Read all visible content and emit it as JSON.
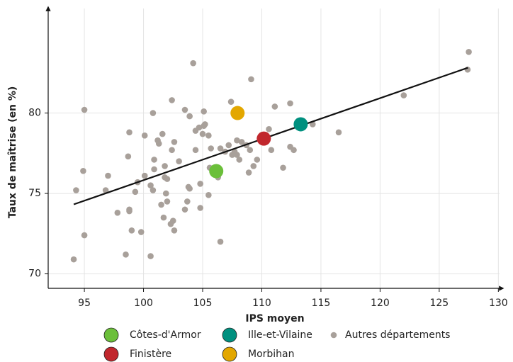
{
  "chart_data": {
    "type": "scatter",
    "xlabel": "IPS moyen",
    "ylabel": "Taux de maîtrise (en %)",
    "xlim": [
      91.94,
      130.1
    ],
    "ylim": [
      69.1,
      86.5
    ],
    "xticks": [
      95,
      100,
      105,
      110,
      115,
      120,
      125,
      130
    ],
    "yticks": [
      70,
      75,
      80
    ],
    "grid": true,
    "fit": {
      "x": [
        94.1,
        127.43
      ],
      "y": [
        74.32,
        82.82
      ],
      "color": "#111111"
    },
    "series": [
      {
        "name": "Autres départements",
        "color": "#a8a09a",
        "marker": "small",
        "x": [
          94.1,
          94.3,
          94.9,
          95.0,
          95.0,
          96.8,
          97.0,
          97.8,
          98.5,
          98.8,
          98.8,
          98.7,
          98.8,
          99.0,
          99.3,
          99.5,
          99.8,
          100.1,
          100.1,
          100.6,
          100.8,
          100.6,
          100.8,
          100.9,
          100.9,
          101.2,
          101.3,
          101.5,
          101.6,
          101.7,
          101.8,
          101.8,
          101.9,
          102.0,
          102.0,
          102.3,
          102.4,
          102.5,
          102.6,
          102.4,
          102.6,
          103.0,
          103.5,
          103.5,
          103.7,
          103.8,
          103.9,
          103.9,
          104.2,
          104.4,
          104.4,
          104.7,
          104.8,
          104.8,
          105.0,
          105.1,
          105.1,
          105.2,
          105.5,
          105.5,
          105.6,
          105.7,
          106.3,
          106.5,
          106.5,
          106.9,
          107.2,
          107.4,
          107.5,
          107.7,
          107.9,
          108.1,
          107.9,
          108.3,
          108.7,
          108.9,
          109.0,
          109.1,
          109.3,
          109.6,
          110.6,
          110.8,
          111.1,
          111.8,
          112.4,
          112.4,
          112.7,
          114.3,
          116.5,
          122.0,
          127.5,
          127.4
        ],
        "y": [
          70.9,
          75.2,
          76.4,
          80.2,
          72.4,
          75.2,
          76.1,
          73.8,
          71.2,
          73.9,
          74.0,
          77.3,
          78.8,
          72.7,
          75.1,
          75.7,
          72.6,
          76.1,
          78.6,
          75.5,
          80.0,
          71.1,
          75.2,
          77.1,
          76.5,
          78.3,
          78.1,
          74.3,
          78.7,
          73.5,
          76.0,
          76.7,
          75.0,
          74.5,
          75.9,
          73.1,
          80.8,
          73.3,
          78.2,
          77.7,
          72.7,
          77.0,
          80.2,
          74.0,
          74.5,
          75.4,
          75.3,
          79.8,
          83.1,
          77.7,
          78.9,
          79.1,
          74.1,
          75.6,
          78.7,
          79.2,
          80.1,
          79.3,
          78.6,
          74.9,
          76.6,
          77.8,
          76.0,
          72.0,
          77.8,
          77.6,
          78.0,
          80.7,
          77.4,
          77.6,
          77.4,
          77.1,
          78.3,
          78.2,
          78.0,
          76.3,
          77.7,
          82.1,
          76.7,
          77.1,
          79.0,
          77.7,
          80.4,
          76.6,
          80.6,
          77.9,
          77.7,
          79.3,
          78.8,
          81.1,
          83.8,
          82.7
        ]
      },
      {
        "name": "Côtes-d'Armor",
        "color": "#6bbf3a",
        "marker": "large",
        "x": [
          106.15
        ],
        "y": [
          76.39
        ]
      },
      {
        "name": "Finistère",
        "color": "#c1272d",
        "marker": "large",
        "x": [
          110.17
        ],
        "y": [
          78.41
        ]
      },
      {
        "name": "Ille-et-Vilaine",
        "color": "#00907f",
        "marker": "large",
        "x": [
          113.29
        ],
        "y": [
          79.3
        ]
      },
      {
        "name": "Morbihan",
        "color": "#e3a700",
        "marker": "large",
        "x": [
          107.95
        ],
        "y": [
          80.0
        ]
      }
    ]
  }
}
